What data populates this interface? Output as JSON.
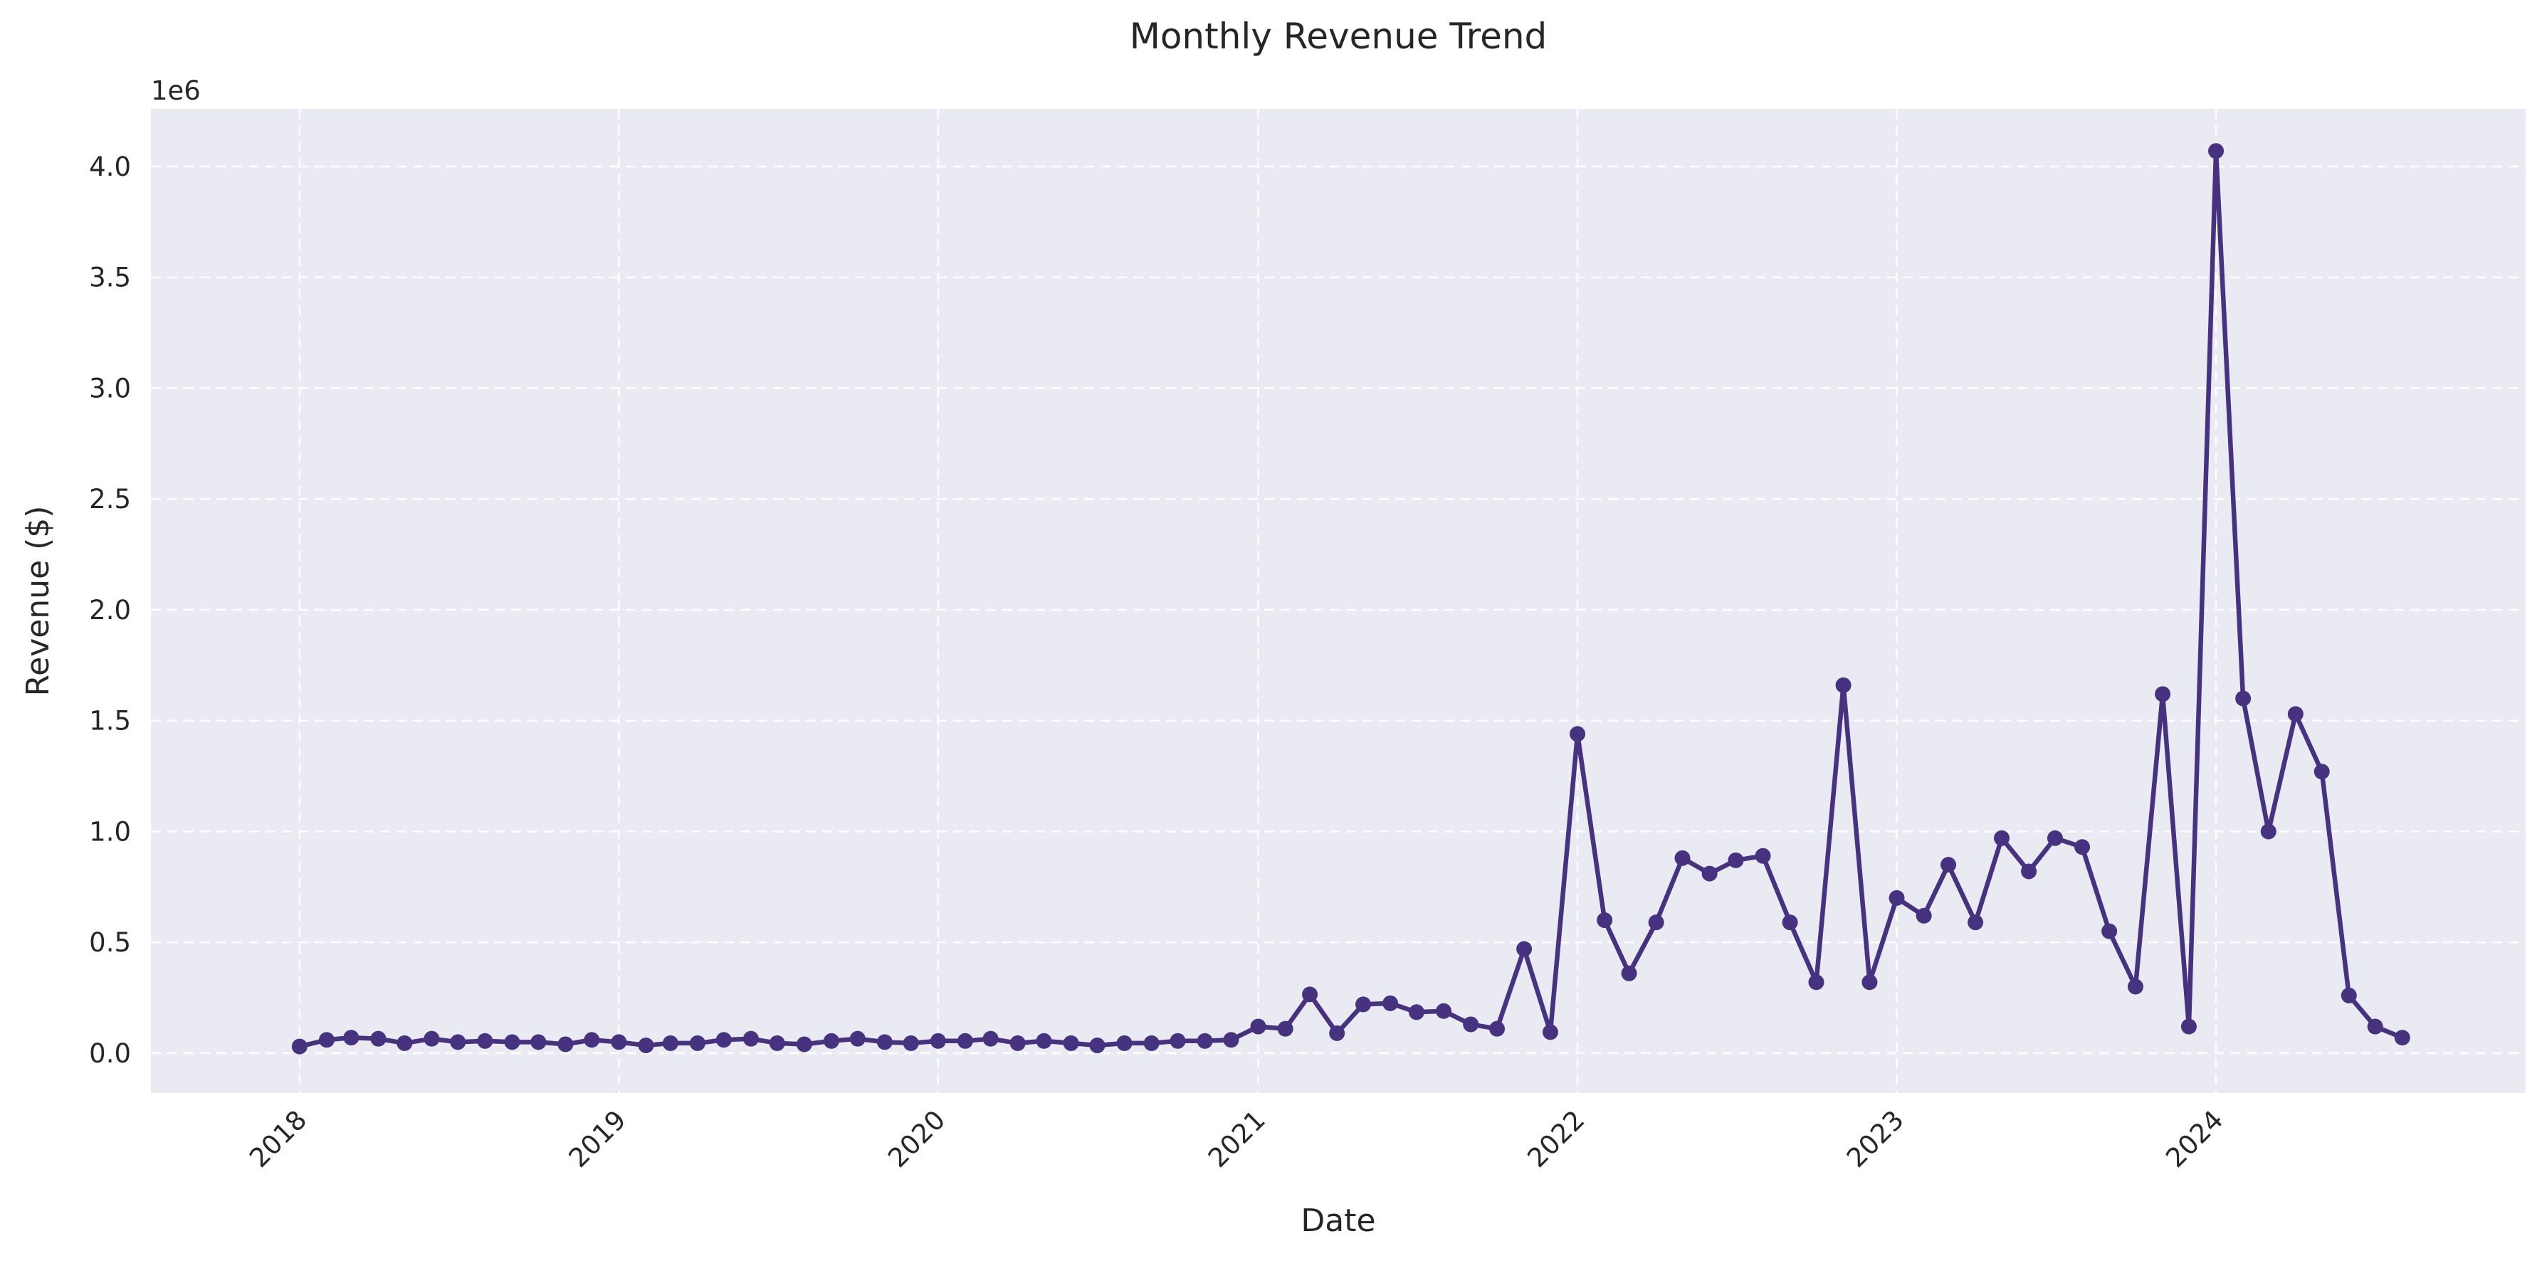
{
  "colors": {
    "plot_background": "#eaeaf2",
    "grid": "#ffffff",
    "series": "#46327e"
  },
  "chart_data": {
    "type": "line",
    "title": "Monthly Revenue Trend",
    "xlabel": "Date",
    "ylabel": "Revenue ($)",
    "y_offset_label": "1e6",
    "x_ticks": [
      "2018",
      "2019",
      "2020",
      "2021",
      "2022",
      "2023",
      "2024"
    ],
    "x_tick_rotation_deg": 45,
    "y_ticks": [
      "0.0",
      "0.5",
      "1.0",
      "1.5",
      "2.0",
      "2.5",
      "3.0",
      "3.5",
      "4.0"
    ],
    "xlim": [
      "2017-07-15",
      "2024-12-20"
    ],
    "ylim": [
      -0.18,
      4.26
    ],
    "grid": true,
    "marker": "circle",
    "series": [
      {
        "x": [
          "2018-01",
          "2018-02",
          "2018-03",
          "2018-04",
          "2018-05",
          "2018-06",
          "2018-07",
          "2018-08",
          "2018-09",
          "2018-10",
          "2018-11",
          "2018-12",
          "2019-01",
          "2019-02",
          "2019-03",
          "2019-04",
          "2019-05",
          "2019-06",
          "2019-07",
          "2019-08",
          "2019-09",
          "2019-10",
          "2019-11",
          "2019-12",
          "2020-01",
          "2020-02",
          "2020-03",
          "2020-04",
          "2020-05",
          "2020-06",
          "2020-07",
          "2020-08",
          "2020-09",
          "2020-10",
          "2020-11",
          "2020-12",
          "2021-01",
          "2021-02",
          "2021-03",
          "2021-04",
          "2021-05",
          "2021-06",
          "2021-07",
          "2021-08",
          "2021-09",
          "2021-10",
          "2021-11",
          "2021-12",
          "2022-01",
          "2022-02",
          "2022-03",
          "2022-04",
          "2022-05",
          "2022-06",
          "2022-07",
          "2022-08",
          "2022-09",
          "2022-10",
          "2022-11",
          "2022-12",
          "2023-01",
          "2023-02",
          "2023-03",
          "2023-04",
          "2023-05",
          "2023-06",
          "2023-07",
          "2023-08",
          "2023-09",
          "2023-10",
          "2023-11",
          "2023-12",
          "2024-01",
          "2024-02",
          "2024-03",
          "2024-04",
          "2024-05",
          "2024-06",
          "2024-07",
          "2024-08"
        ],
        "y": [
          0.03,
          0.06,
          0.07,
          0.065,
          0.045,
          0.065,
          0.05,
          0.055,
          0.05,
          0.05,
          0.04,
          0.06,
          0.05,
          0.035,
          0.045,
          0.045,
          0.06,
          0.065,
          0.045,
          0.04,
          0.055,
          0.065,
          0.05,
          0.045,
          0.055,
          0.055,
          0.065,
          0.045,
          0.055,
          0.045,
          0.035,
          0.045,
          0.045,
          0.055,
          0.055,
          0.06,
          0.12,
          0.11,
          0.265,
          0.09,
          0.22,
          0.225,
          0.185,
          0.19,
          0.13,
          0.11,
          0.47,
          0.095,
          1.44,
          0.6,
          0.36,
          0.59,
          0.88,
          0.81,
          0.87,
          0.89,
          0.59,
          0.32,
          1.66,
          0.32,
          0.7,
          0.62,
          0.85,
          0.59,
          0.97,
          0.82,
          0.97,
          0.93,
          0.55,
          0.3,
          1.62,
          0.12,
          4.07,
          1.6,
          1.0,
          1.53,
          1.27,
          0.26,
          0.12,
          0.07
        ]
      }
    ]
  }
}
